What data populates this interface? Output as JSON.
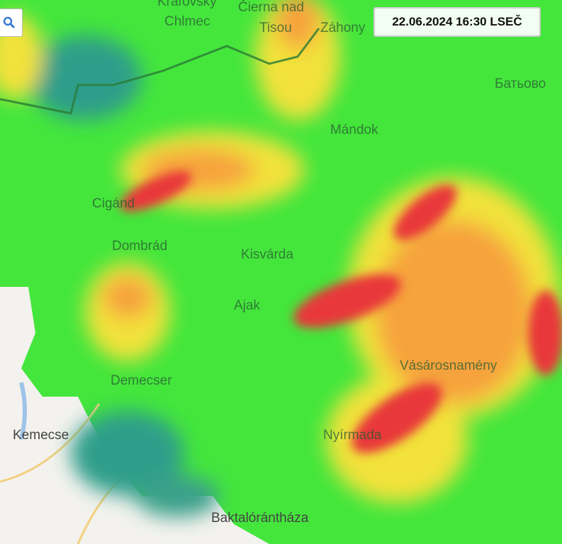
{
  "timestamp": "22.06.2024 16:30 LSEČ",
  "search_icon": "search-icon",
  "colors": {
    "light": "#3f6bc8",
    "moderate": "#44e63c",
    "heavy_yellow": "#f2e23a",
    "orange": "#f6a33c",
    "red": "#e8393a"
  },
  "places": [
    {
      "id": "kralovsky",
      "name": "Kráľovský"
    },
    {
      "id": "chlmec",
      "name": "Chlmec"
    },
    {
      "id": "cierna",
      "name": "Čierna nad"
    },
    {
      "id": "tisou",
      "name": "Tisou"
    },
    {
      "id": "zahony",
      "name": "Záhony"
    },
    {
      "id": "batovo",
      "name": "Батьово"
    },
    {
      "id": "mandok",
      "name": "Mándok"
    },
    {
      "id": "cigand",
      "name": "Cigánd"
    },
    {
      "id": "dombrad",
      "name": "Dombrád"
    },
    {
      "id": "kisvarda",
      "name": "Kisvárda"
    },
    {
      "id": "ajak",
      "name": "Ajak"
    },
    {
      "id": "demecser",
      "name": "Demecser"
    },
    {
      "id": "kemecse",
      "name": "Kemecse"
    },
    {
      "id": "vasarosnameny",
      "name": "Vásárosnamény"
    },
    {
      "id": "nyirmada",
      "name": "Nyírmada"
    },
    {
      "id": "baktalorantaza",
      "name": "Baktalórántháza"
    }
  ]
}
